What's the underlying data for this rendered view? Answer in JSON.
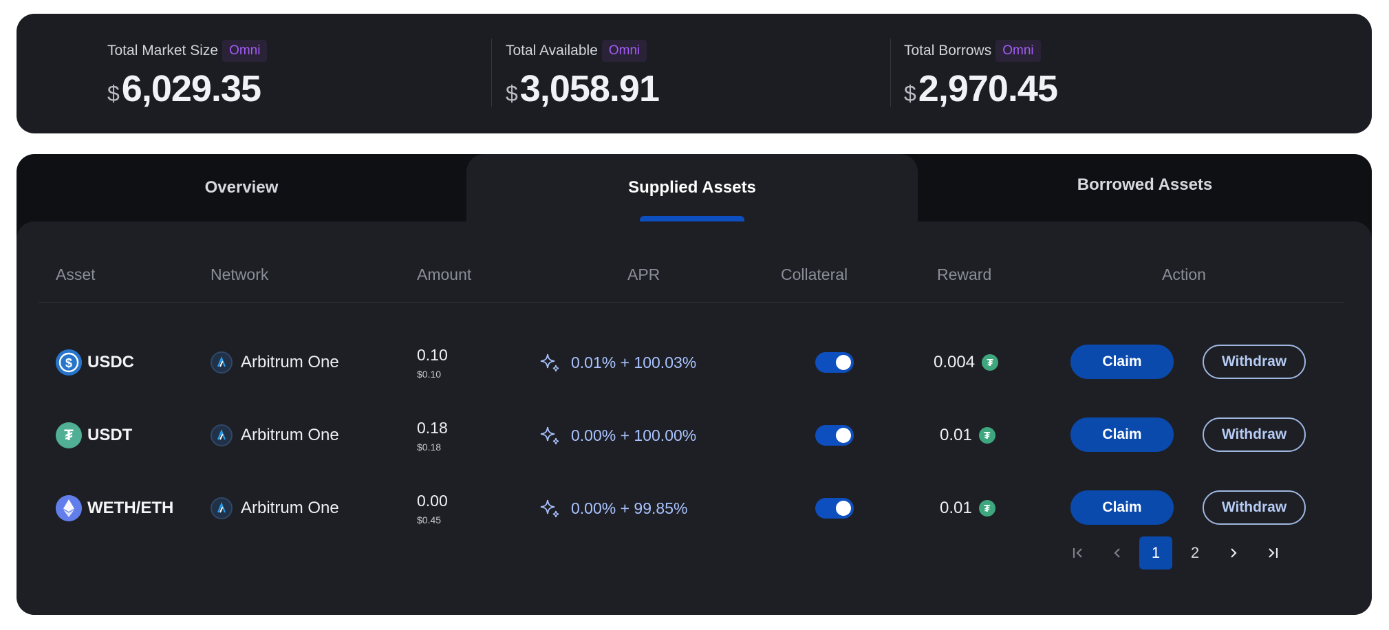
{
  "stats": [
    {
      "label": "Total Market Size",
      "badge": "Omni",
      "currency": "$",
      "value": "6,029.35"
    },
    {
      "label": "Total Available",
      "badge": "Omni",
      "currency": "$",
      "value": "3,058.91"
    },
    {
      "label": "Total Borrows",
      "badge": "Omni",
      "currency": "$",
      "value": "2,970.45"
    }
  ],
  "tabs": [
    {
      "label": "Overview"
    },
    {
      "label": "Supplied Assets",
      "active": true
    },
    {
      "label": "Borrowed Assets"
    }
  ],
  "columns": {
    "asset": "Asset",
    "network": "Network",
    "amount": "Amount",
    "apr": "APR",
    "collateral": "Collateral",
    "reward": "Reward",
    "action": "Action"
  },
  "rows": [
    {
      "asset": "USDC",
      "icon": "usdc-icon",
      "network": "Arbitrum One",
      "amount": "0.10",
      "amount_usd": "$0.10",
      "apr": "0.01% + 100.03%",
      "collateral": true,
      "reward": "0.004",
      "claim": "Claim",
      "withdraw": "Withdraw"
    },
    {
      "asset": "USDT",
      "icon": "usdt-icon",
      "network": "Arbitrum One",
      "amount": "0.18",
      "amount_usd": "$0.18",
      "apr": "0.00% + 100.00%",
      "collateral": true,
      "reward": "0.01",
      "claim": "Claim",
      "withdraw": "Withdraw"
    },
    {
      "asset": "WETH/ETH",
      "icon": "eth-icon",
      "network": "Arbitrum One",
      "amount": "0.00",
      "amount_usd": "$0.45",
      "apr": "0.00% + 99.85%",
      "collateral": true,
      "reward": "0.01",
      "claim": "Claim",
      "withdraw": "Withdraw"
    }
  ],
  "pagination": {
    "pages": [
      "1",
      "2"
    ],
    "current": "1"
  },
  "colors": {
    "accent": "#0a4aad",
    "badge_text": "#a45cf5",
    "apr_text": "#a9c3ff",
    "tether": "#3ea77e"
  }
}
